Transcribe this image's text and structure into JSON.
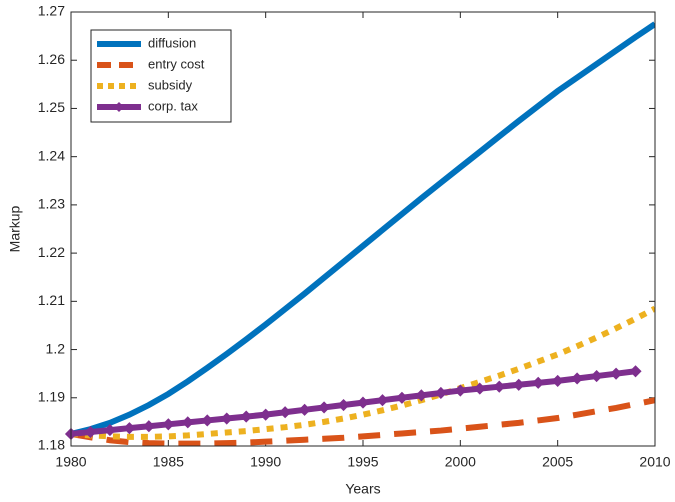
{
  "chart_data": {
    "type": "line",
    "x_label": "Years",
    "y_label": "Markup",
    "x": [
      1980,
      1981,
      1982,
      1983,
      1984,
      1985,
      1986,
      1987,
      1988,
      1989,
      1990,
      1991,
      1992,
      1993,
      1994,
      1995,
      1996,
      1997,
      1998,
      1999,
      2000,
      2001,
      2002,
      2003,
      2004,
      2005,
      2006,
      2007,
      2008,
      2009,
      2010
    ],
    "series": [
      {
        "name": "diffusion",
        "color": "#0072BD",
        "style": "solid",
        "values": [
          1.1825,
          1.1835,
          1.1848,
          1.1865,
          1.1885,
          1.1908,
          1.1934,
          1.1962,
          1.1991,
          1.2021,
          1.2052,
          1.2084,
          1.2116,
          1.2149,
          1.2182,
          1.2215,
          1.2248,
          1.2281,
          1.2314,
          1.2346,
          1.2378,
          1.241,
          1.2442,
          1.2474,
          1.2505,
          1.2536,
          1.2564,
          1.2592,
          1.262,
          1.2648,
          1.2675
        ]
      },
      {
        "name": "entry cost",
        "color": "#D95319",
        "style": "dashed",
        "values": [
          1.1825,
          1.1818,
          1.1812,
          1.1808,
          1.1806,
          1.1805,
          1.1805,
          1.1805,
          1.1806,
          1.1807,
          1.1809,
          1.1811,
          1.1813,
          1.1815,
          1.1817,
          1.182,
          1.1823,
          1.1826,
          1.1829,
          1.1832,
          1.1836,
          1.184,
          1.1844,
          1.1848,
          1.1853,
          1.1858,
          1.1865,
          1.1872,
          1.1879,
          1.1887,
          1.1895
        ]
      },
      {
        "name": "subsidy",
        "color": "#EDB120",
        "style": "dotted",
        "values": [
          1.1825,
          1.1822,
          1.182,
          1.1819,
          1.1819,
          1.182,
          1.1822,
          1.1825,
          1.1828,
          1.1831,
          1.1835,
          1.1839,
          1.1844,
          1.185,
          1.1857,
          1.1865,
          1.1874,
          1.1884,
          1.1895,
          1.1907,
          1.192,
          1.1933,
          1.1946,
          1.196,
          1.1975,
          1.199,
          1.2007,
          1.2025,
          1.2044,
          1.2064,
          1.2085
        ]
      },
      {
        "name": "corp. tax",
        "color": "#7E2F8E",
        "style": "solid",
        "marker": "diamond",
        "values": [
          1.1825,
          1.1829,
          1.1833,
          1.1837,
          1.1841,
          1.1845,
          1.1849,
          1.1853,
          1.1857,
          1.1861,
          1.1865,
          1.187,
          1.1875,
          1.188,
          1.1885,
          1.189,
          1.1895,
          1.19,
          1.1905,
          1.191,
          1.1915,
          1.1919,
          1.1923,
          1.1927,
          1.1931,
          1.1935,
          1.194,
          1.1945,
          1.195,
          1.1955,
          null
        ]
      }
    ],
    "xlim": [
      1980,
      2010
    ],
    "xticks": [
      1980,
      1985,
      1990,
      1995,
      2000,
      2005,
      2010
    ],
    "ylim": [
      1.18,
      1.27
    ],
    "yticks": [
      1.18,
      1.19,
      1.2,
      1.21,
      1.22,
      1.23,
      1.24,
      1.25,
      1.26,
      1.27
    ],
    "legend": "top-left",
    "grid": false
  }
}
